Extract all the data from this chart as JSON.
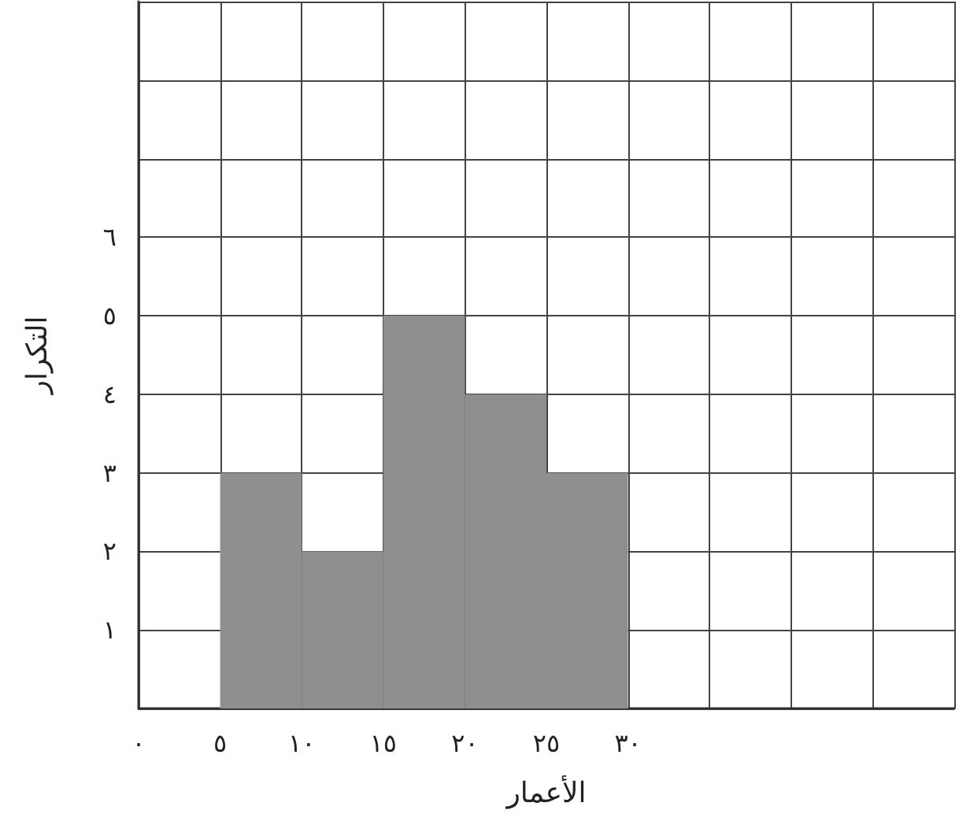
{
  "chart_data": {
    "type": "histogram",
    "xlabel": "الأعمار",
    "ylabel": "التكرار",
    "bins": [
      5,
      10,
      15,
      20,
      25,
      30
    ],
    "values": [
      3,
      2,
      5,
      4,
      3
    ],
    "color": "#8f8f8f",
    "xlim": [
      0,
      50
    ],
    "xticks": [
      {
        "value": 0,
        "label": "٠"
      },
      {
        "value": 5,
        "label": "٥"
      },
      {
        "value": 10,
        "label": "١٠"
      },
      {
        "value": 15,
        "label": "١٥"
      },
      {
        "value": 20,
        "label": "٢٠"
      },
      {
        "value": 25,
        "label": "٢٥"
      },
      {
        "value": 30,
        "label": "٣٠"
      },
      {
        "value": 35,
        "label": null
      },
      {
        "value": 40,
        "label": null
      },
      {
        "value": 45,
        "label": null
      },
      {
        "value": 50,
        "label": null
      }
    ],
    "ylim": [
      0,
      9
    ],
    "yticks": [
      {
        "value": 0,
        "label": null
      },
      {
        "value": 1,
        "label": "١"
      },
      {
        "value": 2,
        "label": "٢"
      },
      {
        "value": 3,
        "label": "٣"
      },
      {
        "value": 4,
        "label": "٤"
      },
      {
        "value": 5,
        "label": "٥"
      },
      {
        "value": 6,
        "label": "٦"
      },
      {
        "value": 7,
        "label": null
      },
      {
        "value": 8,
        "label": null
      },
      {
        "value": 9,
        "label": null
      }
    ],
    "grid": true
  }
}
